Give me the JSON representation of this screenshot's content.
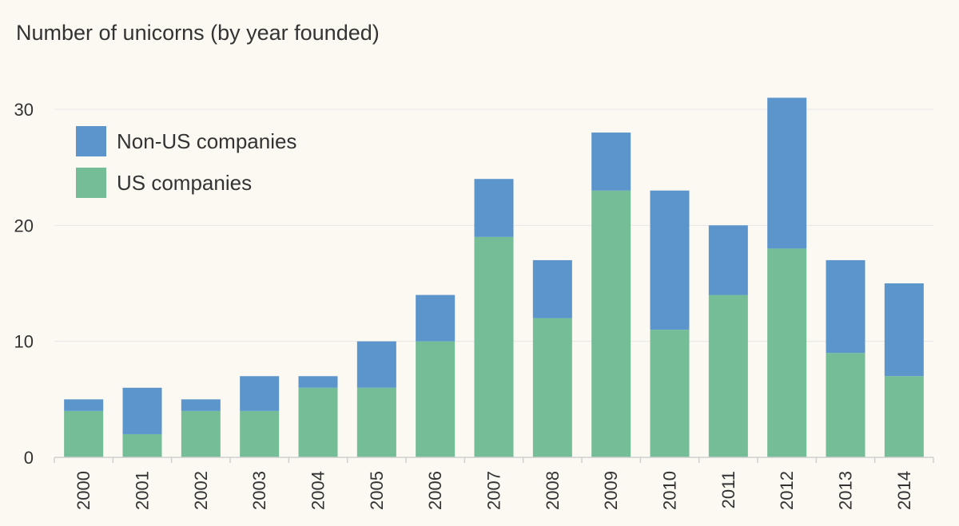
{
  "chart_data": {
    "type": "bar",
    "stacked": true,
    "title": "Number of unicorns (by year founded)",
    "xlabel": "",
    "ylabel": "",
    "ylim": [
      0,
      33
    ],
    "yticks": [
      0,
      10,
      20,
      30
    ],
    "grid": true,
    "legend_position": "top-left",
    "categories": [
      "2000",
      "2001",
      "2002",
      "2003",
      "2004",
      "2005",
      "2006",
      "2007",
      "2008",
      "2009",
      "2010",
      "2011",
      "2012",
      "2013",
      "2014"
    ],
    "series": [
      {
        "name": "US companies",
        "color": "#74bd96",
        "values": [
          4,
          2,
          4,
          4,
          6,
          6,
          10,
          19,
          12,
          23,
          11,
          14,
          18,
          9,
          7
        ]
      },
      {
        "name": "Non-US companies",
        "color": "#5b95cc",
        "values": [
          1,
          4,
          1,
          3,
          1,
          4,
          4,
          5,
          5,
          5,
          12,
          6,
          13,
          8,
          8
        ]
      }
    ],
    "legend_order": [
      "Non-US companies",
      "US companies"
    ]
  }
}
